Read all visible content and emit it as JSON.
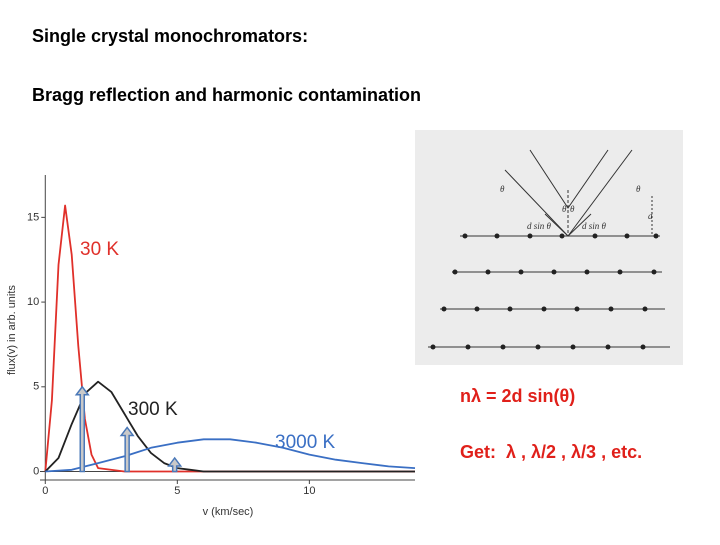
{
  "title": "Single crystal monochromators:",
  "subtitle": "Bragg reflection and harmonic contamination",
  "chart_data": {
    "type": "line",
    "xlabel": "v (km/sec)",
    "ylabel": "flux(v) in arb. units",
    "xlim": [
      -0.2,
      14
    ],
    "ylim": [
      -0.5,
      17.5
    ],
    "xticks": [
      0,
      5,
      10
    ],
    "yticks": [
      0,
      5,
      10,
      15
    ],
    "series": [
      {
        "name": "30 K",
        "color": "#e0302a",
        "x": [
          0,
          0.25,
          0.5,
          0.75,
          1,
          1.25,
          1.5,
          1.75,
          2,
          3,
          14
        ],
        "values": [
          0,
          4.2,
          12.2,
          15.7,
          12.8,
          7.4,
          3.1,
          1.0,
          0.2,
          0,
          0
        ]
      },
      {
        "name": "300 K",
        "color": "#222222",
        "x": [
          0,
          0.5,
          1,
          1.5,
          2,
          2.5,
          3,
          3.5,
          4,
          4.5,
          5,
          5.5,
          6,
          7,
          14
        ],
        "values": [
          0,
          0.8,
          2.8,
          4.6,
          5.3,
          4.7,
          3.4,
          2.1,
          1.1,
          0.5,
          0.2,
          0.1,
          0,
          0,
          0
        ]
      },
      {
        "name": "3000 K",
        "color": "#3a6fc4",
        "x": [
          0,
          1,
          2,
          3,
          4,
          5,
          6,
          7,
          8,
          9,
          10,
          11,
          12,
          13,
          14
        ],
        "values": [
          0,
          0.1,
          0.5,
          0.9,
          1.4,
          1.7,
          1.9,
          1.9,
          1.7,
          1.4,
          1.0,
          0.7,
          0.5,
          0.3,
          0.2
        ]
      }
    ],
    "arrows": {
      "color": "#4a78b8",
      "x": [
        1.4,
        3.1,
        4.9
      ],
      "y": [
        5.0,
        2.6,
        0.8
      ]
    }
  },
  "diagram": {
    "labels": [
      "θ",
      "θ",
      "θ",
      "θ",
      "d",
      "d sin θ",
      "d sin θ"
    ]
  },
  "equation": "nλ = 2d sin(θ)",
  "result": "Get:  λ , λ/2 , λ/3 , etc."
}
